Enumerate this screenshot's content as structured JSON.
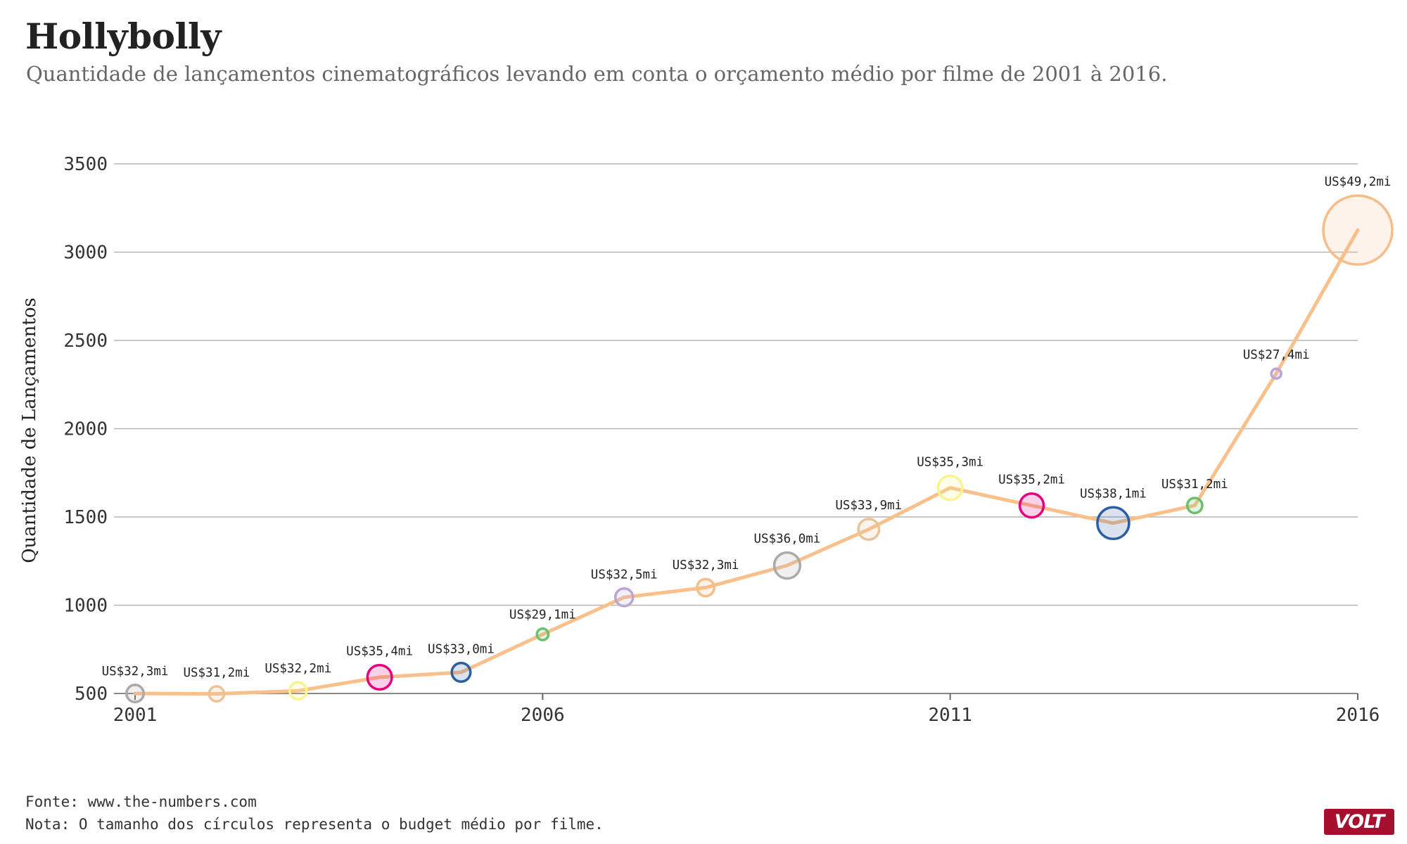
{
  "header": {
    "title": "Hollybolly",
    "subtitle": "Quantidade de lançamentos cinematográficos levando em conta o orçamento médio por filme de 2001 à 2016."
  },
  "chart_data": {
    "type": "line",
    "ylabel": "Quantidade de Lançamentos",
    "ylim": [
      500,
      3500
    ],
    "xlim": [
      2001,
      2016
    ],
    "y_ticks": [
      "500",
      "1000",
      "1500",
      "2000",
      "2500",
      "3000",
      "3500"
    ],
    "x_ticks": [
      "2001",
      "2006",
      "2011",
      "2016"
    ],
    "grid": "horizontal",
    "line_color": "#f9c08c",
    "points": [
      {
        "year": 2001,
        "releases": 500,
        "budget": 32.3,
        "label": "US$32,3mi",
        "color": "#aaaaaa"
      },
      {
        "year": 2002,
        "releases": 498,
        "budget": 31.2,
        "label": "US$31,2mi",
        "color": "#e9c49b"
      },
      {
        "year": 2003,
        "releases": 515,
        "budget": 32.2,
        "label": "US$32,2mi",
        "color": "#f8f58c"
      },
      {
        "year": 2004,
        "releases": 592,
        "budget": 35.4,
        "label": "US$35,4mi",
        "color": "#e6007e"
      },
      {
        "year": 2005,
        "releases": 620,
        "budget": 33.0,
        "label": "US$33,0mi",
        "color": "#2b5fa3"
      },
      {
        "year": 2006,
        "releases": 835,
        "budget": 29.1,
        "label": "US$29,1mi",
        "color": "#6cc06c"
      },
      {
        "year": 2007,
        "releases": 1045,
        "budget": 32.5,
        "label": "US$32,5mi",
        "color": "#b9a5d6"
      },
      {
        "year": 2008,
        "releases": 1100,
        "budget": 32.3,
        "label": "US$32,3mi",
        "color": "#f6bd88"
      },
      {
        "year": 2009,
        "releases": 1225,
        "budget": 36.0,
        "label": "US$36,0mi",
        "color": "#aaaaaa"
      },
      {
        "year": 2010,
        "releases": 1430,
        "budget": 33.9,
        "label": "US$33,9mi",
        "color": "#e9c49b"
      },
      {
        "year": 2011,
        "releases": 1665,
        "budget": 35.3,
        "label": "US$35,3mi",
        "color": "#f8f58c"
      },
      {
        "year": 2012,
        "releases": 1565,
        "budget": 35.2,
        "label": "US$35,2mi",
        "color": "#e6007e"
      },
      {
        "year": 2013,
        "releases": 1465,
        "budget": 38.1,
        "label": "US$38,1mi",
        "color": "#2b5fa3"
      },
      {
        "year": 2014,
        "releases": 1565,
        "budget": 31.2,
        "label": "US$31,2mi",
        "color": "#6cc06c"
      },
      {
        "year": 2015,
        "releases": 2312,
        "budget": 27.4,
        "label": "US$27,4mi",
        "color": "#b9a5d6"
      },
      {
        "year": 2016,
        "releases": 3125,
        "budget": 49.2,
        "label": "US$49,2mi",
        "color": "#f6bd88"
      }
    ]
  },
  "footer": {
    "source": "Fonte: www.the-numbers.com",
    "note": "Nota: O tamanho dos círculos representa o budget médio por filme."
  },
  "logo": {
    "text": "VOLT",
    "color": "#a60f2d"
  }
}
